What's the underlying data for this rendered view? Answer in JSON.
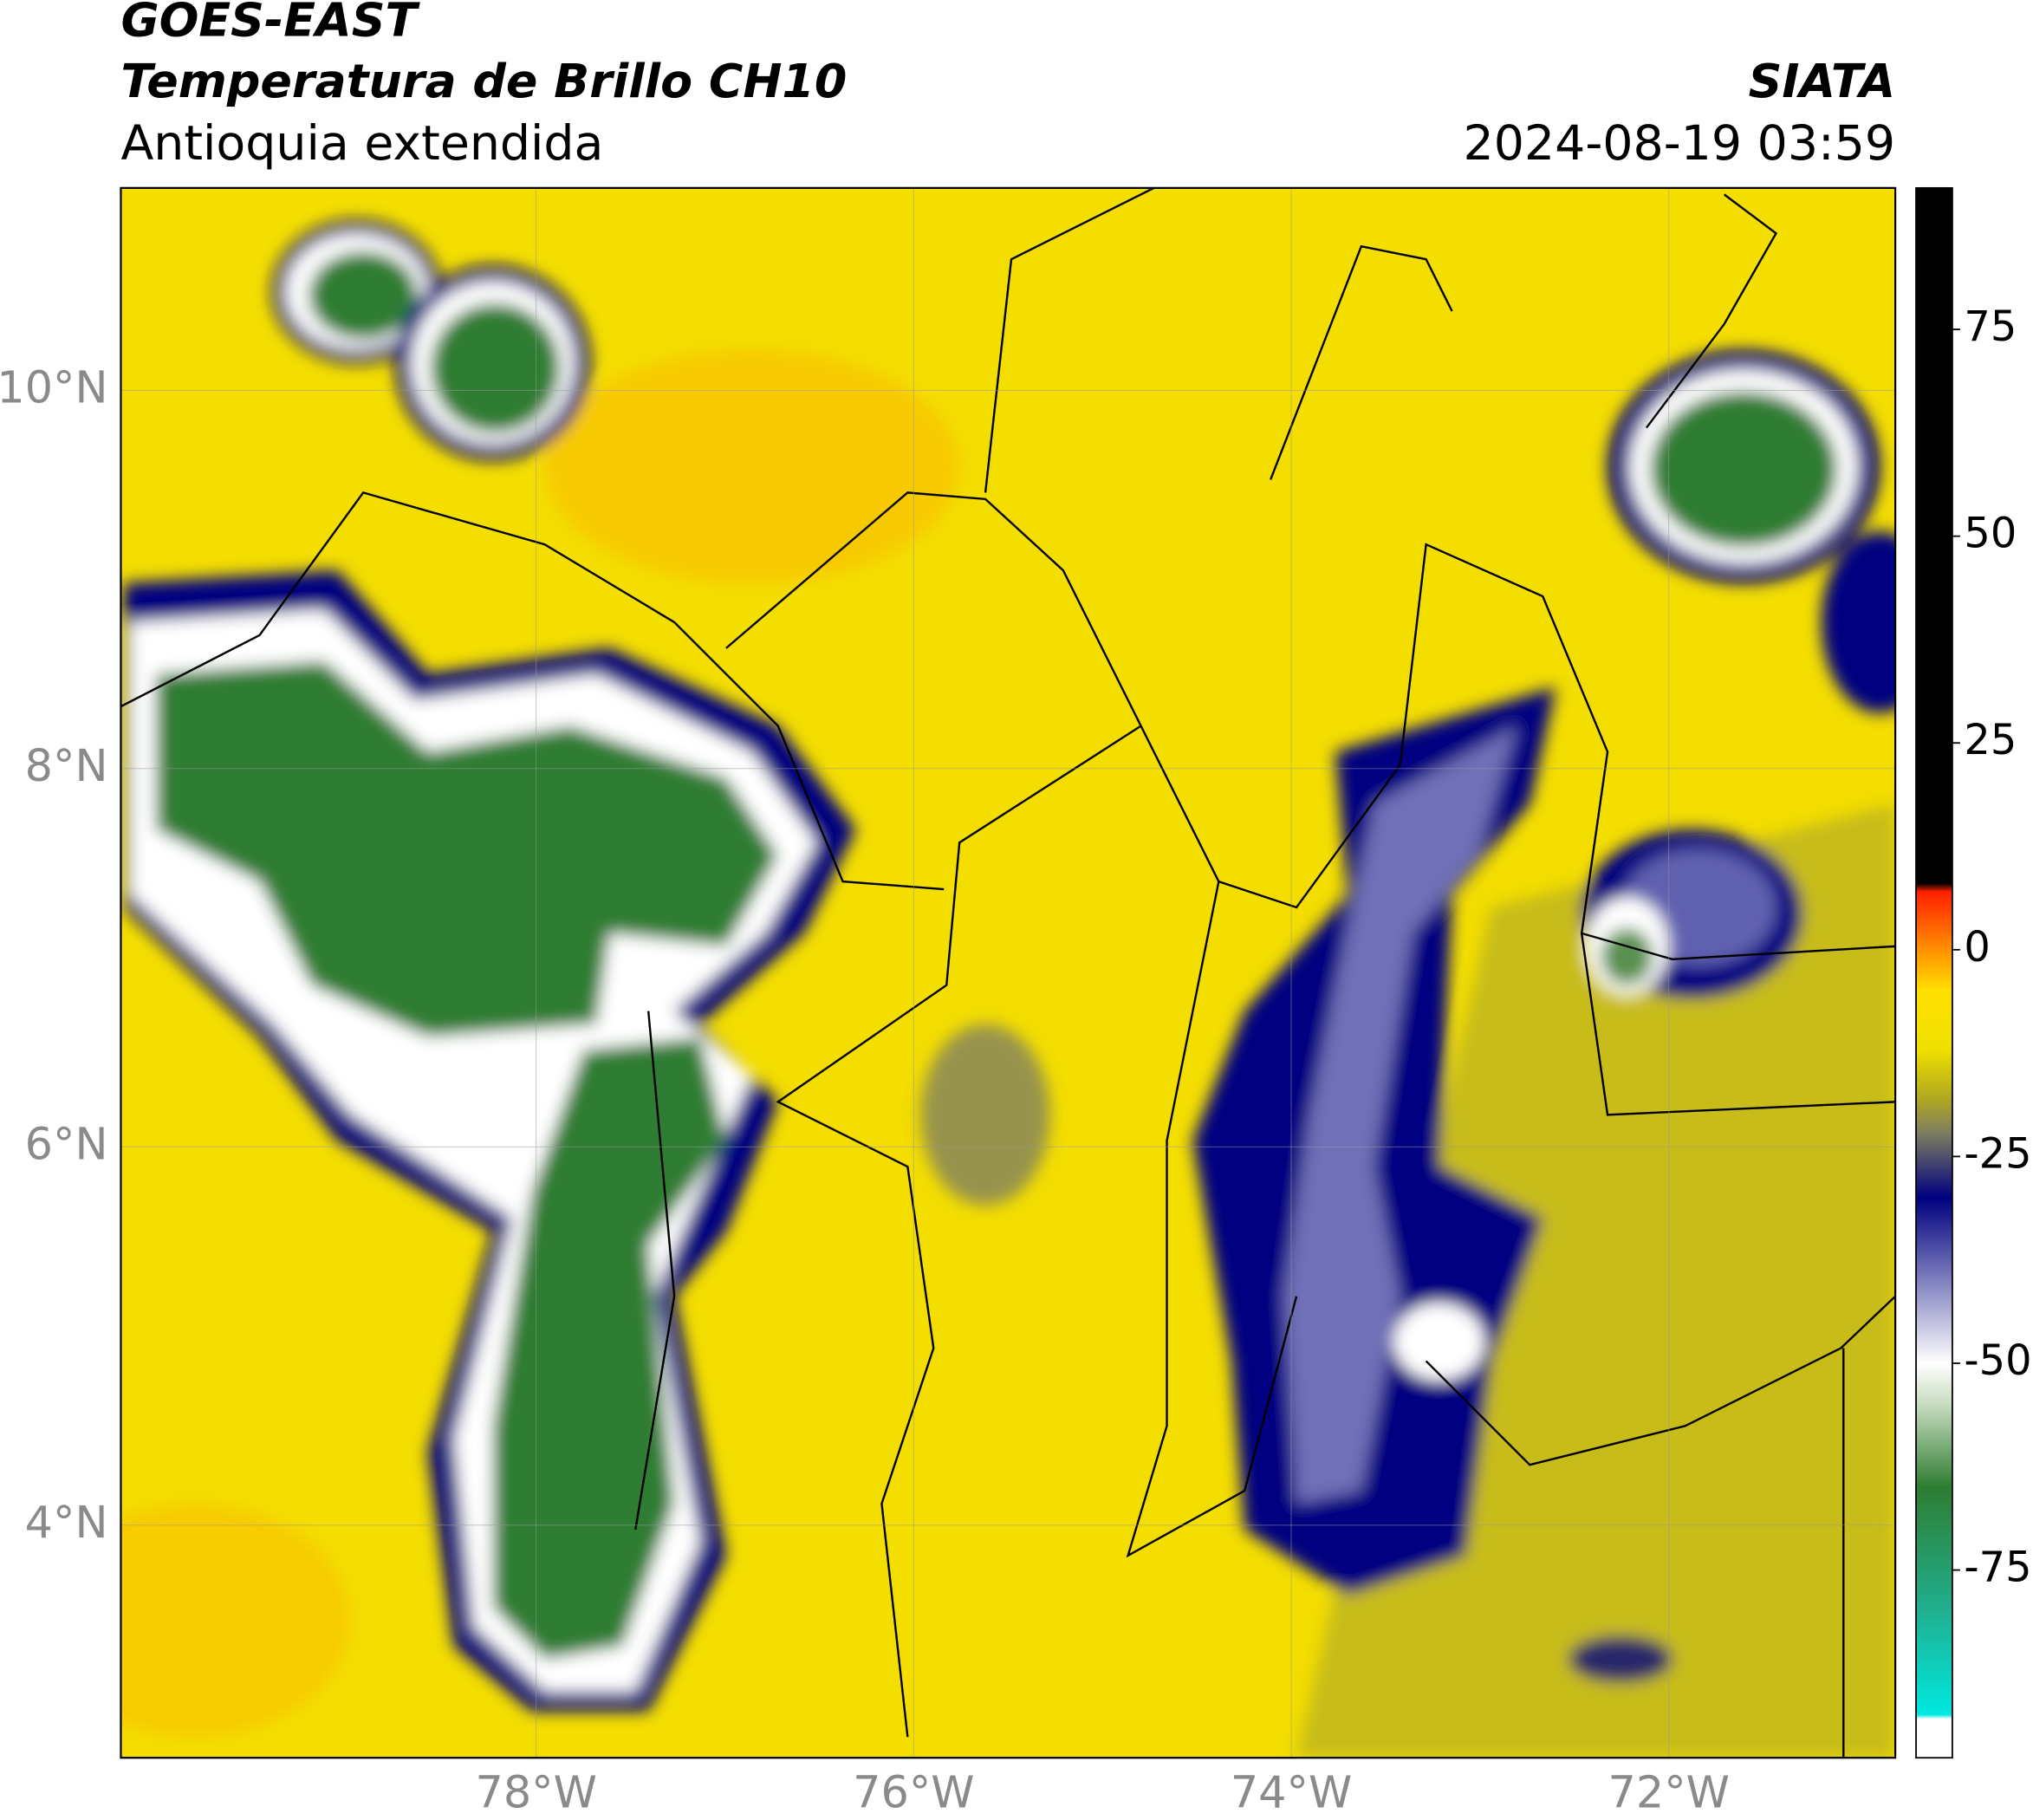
{
  "header": {
    "satellite": "GOES-EAST",
    "product": "Temperatura de Brillo CH10",
    "region": "Antioquia extendida",
    "source": "SIATA",
    "datetime": "2024-08-19 03:59"
  },
  "map": {
    "lonlim": [
      -80.2,
      -70.8
    ],
    "latlim": [
      2.77,
      11.07
    ],
    "xticks": [
      {
        "value": -78,
        "label": "78°W"
      },
      {
        "value": -76,
        "label": "76°W"
      },
      {
        "value": -74,
        "label": "74°W"
      },
      {
        "value": -72,
        "label": "72°W"
      }
    ],
    "yticks": [
      {
        "value": 4,
        "label": "4°N"
      },
      {
        "value": 6,
        "label": "6°N"
      },
      {
        "value": 8,
        "label": "8°N"
      },
      {
        "value": 10,
        "label": "10°N"
      }
    ],
    "grid": true,
    "colorbar": {
      "lim": [
        -97.7,
        92.1
      ],
      "ticks": [
        -75,
        -50,
        -25,
        0,
        25,
        50,
        75
      ],
      "colormap": [
        [
          -93,
          "#ffffff"
        ],
        [
          -92.5,
          "#00e8e0"
        ],
        [
          -80,
          "#20b090"
        ],
        [
          -65,
          "#2e7d32"
        ],
        [
          -55,
          "#c8dcc0"
        ],
        [
          -50,
          "#ffffff"
        ],
        [
          -40,
          "#8080c0"
        ],
        [
          -30,
          "#000080"
        ],
        [
          -22,
          "#808060"
        ],
        [
          -18,
          "#b0a820"
        ],
        [
          -12,
          "#f0e000"
        ],
        [
          -5,
          "#ffe000"
        ],
        [
          0,
          "#ff9000"
        ],
        [
          7,
          "#ff2000"
        ],
        [
          8,
          "#000000"
        ]
      ]
    }
  }
}
